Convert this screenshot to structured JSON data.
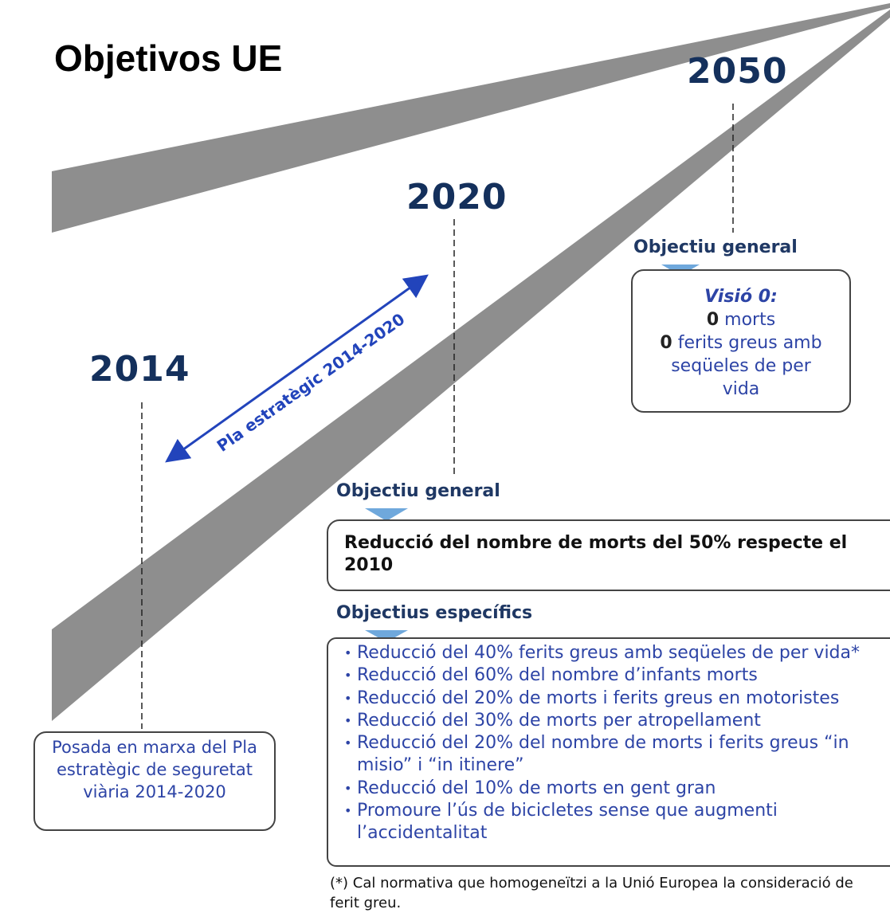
{
  "title": "Objetivos UE",
  "milestones": [
    {
      "year": "2050",
      "heading": "Objectiu general",
      "vision": "Visió 0:",
      "items": [
        {
          "bold": "0",
          "text": "morts"
        },
        {
          "bold": "0",
          "text": "ferits greus amb seqüeles de per vida"
        }
      ]
    },
    {
      "year": "2020",
      "heading": "Objectiu general",
      "goal": "Reducció del nombre de morts del 50% respecte el 2010",
      "specific_heading": "Objectius específics",
      "specific": [
        "Reducció del 40% ferits greus amb seqüeles de per vida*",
        "Reducció del 60% del nombre d’infants morts",
        "Reducció del 20% de morts i ferits greus en motoristes",
        "Reducció del 30% de morts per atropellament",
        "Reducció del 20% del nombre de morts i ferits greus “in misio” i “in itinere”",
        "Reducció del 10% de morts en gent gran",
        "Promoure l’ús de bicicletes sense que augmenti l’accidentalitat"
      ],
      "footnote": "(*) Cal normativa que homogeneïtzi a la Unió Europea la consideració de ferit greu."
    },
    {
      "year": "2014",
      "text": "Posada en marxa del Pla estratègic de seguretat viària 2014-2020"
    }
  ],
  "arrow_label": "Pla estratègic 2014-2020"
}
